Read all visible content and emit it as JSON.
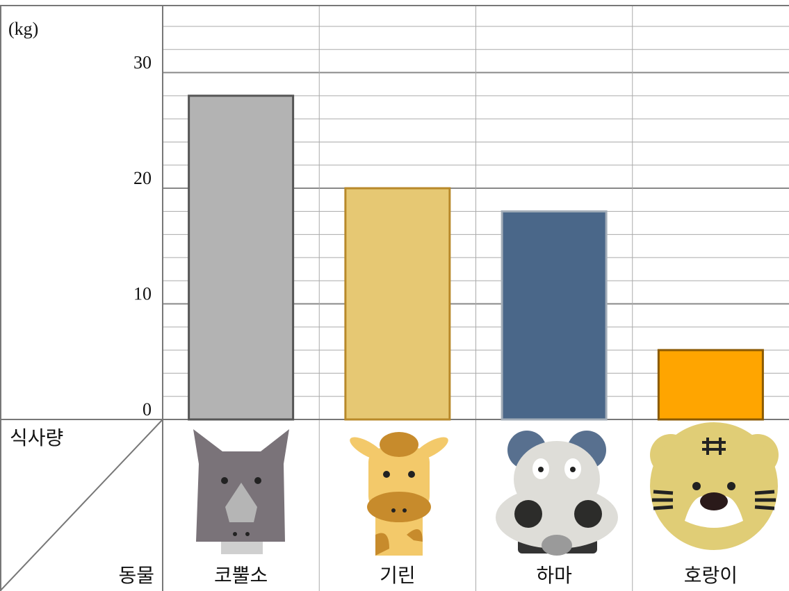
{
  "chart_data": {
    "type": "bar",
    "unit_label": "(kg)",
    "y_header": "식사량",
    "x_header": "동물",
    "categories": [
      "코뿔소",
      "기린",
      "하마",
      "호랑이"
    ],
    "values": [
      28,
      20,
      18,
      6
    ],
    "colors": [
      "#b3b3b3",
      "#e6c873",
      "#4a6789",
      "#ffa500"
    ],
    "edge_colors": [
      "#555555",
      "#b8892a",
      "#a3adb8",
      "#8b5a00"
    ],
    "ylim": [
      0,
      35.8
    ],
    "yticks": [
      0,
      10,
      20,
      30
    ],
    "minor_yticks": [
      2,
      4,
      6,
      8,
      12,
      14,
      16,
      18,
      22,
      24,
      26,
      28,
      32,
      34
    ],
    "grid": true
  }
}
